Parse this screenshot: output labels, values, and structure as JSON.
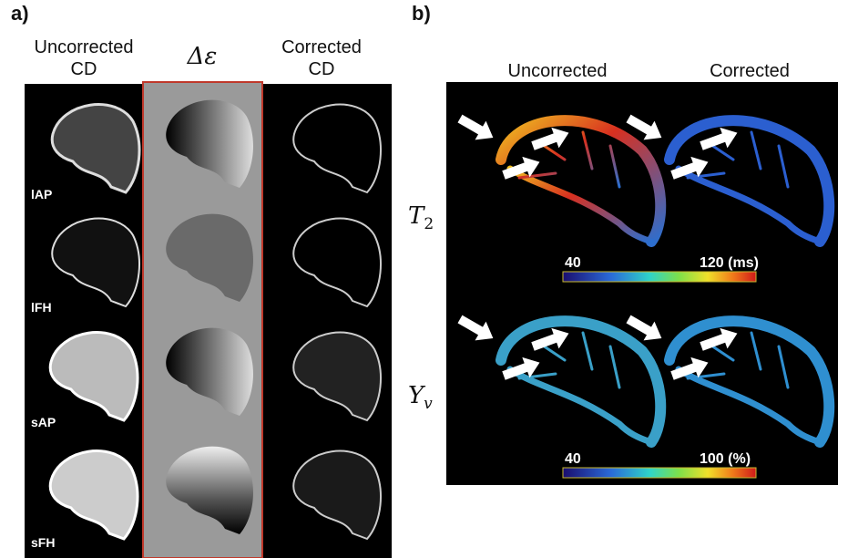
{
  "panel_a": {
    "label": "a)",
    "columns": [
      {
        "line1": "Uncorrected",
        "line2": "CD"
      },
      {
        "line1": "Δε"
      },
      {
        "line1": "Corrected",
        "line2": "CD"
      }
    ],
    "rows": [
      "lAP",
      "lFH",
      "sAP",
      "sFH"
    ]
  },
  "panel_b": {
    "label": "b)",
    "columns": [
      "Uncorrected",
      "Corrected"
    ],
    "rows": [
      {
        "symbol": "T",
        "sub": "2"
      },
      {
        "symbol": "Y",
        "sub": "v"
      }
    ],
    "colorbars": [
      {
        "min": "40",
        "max": "120 (ms)"
      },
      {
        "min": "40",
        "max": "100 (%)"
      }
    ]
  }
}
